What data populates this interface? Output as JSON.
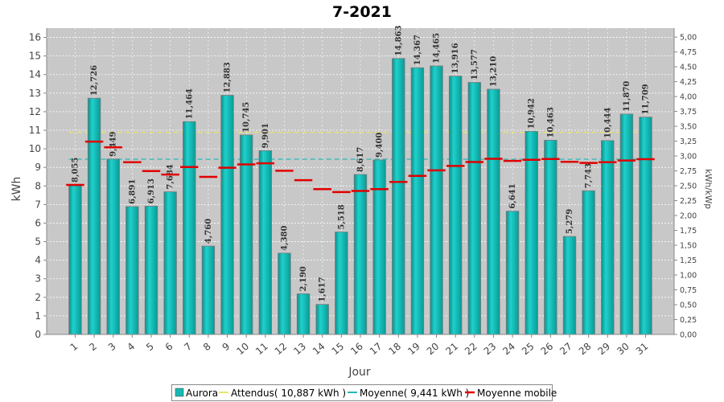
{
  "chart_data": {
    "type": "bar",
    "title": "7-2021",
    "xlabel": "Jour",
    "ylabel": "kWh",
    "ylabel_right": "kWh/kWp",
    "ylim": [
      0,
      16.5
    ],
    "ylim_right": [
      0,
      5.15
    ],
    "categories": [
      "1",
      "2",
      "3",
      "4",
      "5",
      "6",
      "7",
      "8",
      "9",
      "10",
      "11",
      "12",
      "13",
      "14",
      "15",
      "16",
      "17",
      "18",
      "19",
      "20",
      "21",
      "22",
      "23",
      "24",
      "25",
      "26",
      "27",
      "28",
      "29",
      "30",
      "31"
    ],
    "yticks": [
      "0",
      "1",
      "2",
      "3",
      "4",
      "5",
      "6",
      "7",
      "8",
      "9",
      "10",
      "11",
      "12",
      "13",
      "14",
      "15",
      "16"
    ],
    "yticks_right": [
      "0,00",
      "0,25",
      "0,50",
      "0,75",
      "1,00",
      "1,25",
      "1,50",
      "1,75",
      "2,00",
      "2,25",
      "2,50",
      "2,75",
      "3,00",
      "3,25",
      "3,50",
      "3,75",
      "4,00",
      "4,25",
      "4,50",
      "4,75",
      "5,00"
    ],
    "grid": true,
    "legend_position": "bottom",
    "series": [
      {
        "name": "Aurora",
        "type": "bar",
        "color": "#16b8b3",
        "values": [
          8.055,
          12.726,
          9.449,
          6.891,
          6.913,
          7.684,
          11.464,
          4.76,
          12.883,
          10.745,
          9.901,
          4.38,
          2.19,
          1.617,
          5.518,
          8.617,
          9.4,
          14.863,
          14.367,
          14.465,
          13.916,
          13.577,
          13.21,
          6.641,
          10.942,
          10.463,
          5.279,
          7.743,
          10.444,
          11.87,
          11.709
        ],
        "labels": [
          "8,055",
          "12,726",
          "9,449",
          "6,891",
          "6,913",
          "7,684",
          "11,464",
          "4,760",
          "12,883",
          "10,745",
          "9,901",
          "4,380",
          "2,190",
          "1,617",
          "5,518",
          "8,617",
          "9,400",
          "14,863",
          "14,367",
          "14,465",
          "13,916",
          "13,577",
          "13,210",
          "6,641",
          "10,942",
          "10,463",
          "5,279",
          "7,743",
          "10,444",
          "11,870",
          "11,709"
        ]
      },
      {
        "name": "Attendus( 10,887 kWh )",
        "type": "dashed-line",
        "color": "#e8e86a",
        "value": 10.887
      },
      {
        "name": "Moyenne( 9,441 kWh )",
        "type": "dashed-line",
        "color": "#27b7b7",
        "value": 9.441
      },
      {
        "name": "Moyenne mobile",
        "type": "marker",
        "color": "#e00000",
        "values": [
          8.055,
          10.39,
          10.08,
          9.28,
          8.8,
          8.61,
          9.02,
          8.49,
          8.98,
          9.16,
          9.22,
          8.82,
          8.31,
          7.83,
          7.67,
          7.73,
          7.83,
          8.22,
          8.54,
          8.84,
          9.08,
          9.29,
          9.46,
          9.35,
          9.41,
          9.45,
          9.3,
          9.24,
          9.28,
          9.37,
          9.44
        ]
      }
    ]
  }
}
